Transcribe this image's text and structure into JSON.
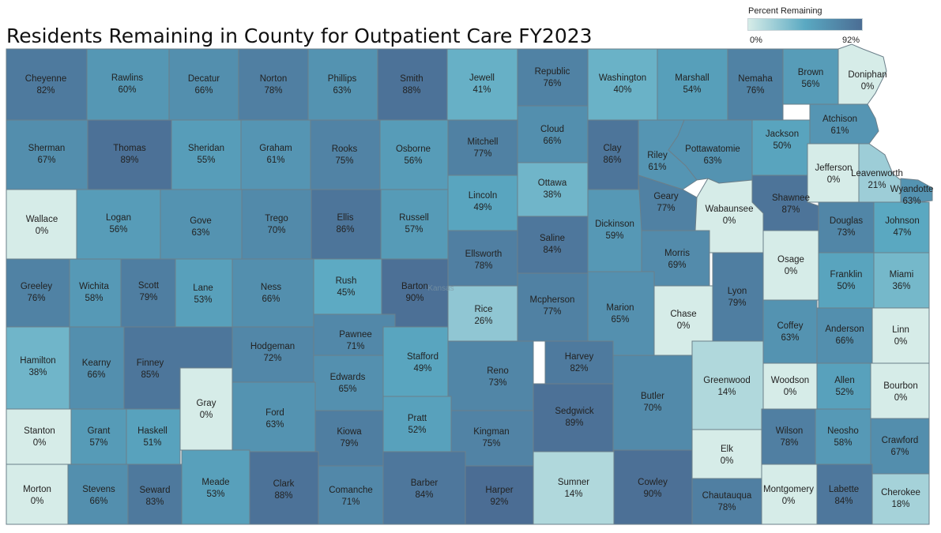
{
  "title": "Residents Remaining in County for Outpatient Care FY2023",
  "legend": {
    "title": "Percent Remaining",
    "min_label": "0%",
    "max_label": "92%",
    "min_value": 0,
    "max_value": 92,
    "color_low": "#d6ece8",
    "color_mid": "#5aa9c2",
    "color_high": "#4b6d94"
  },
  "watermark": "Kansas",
  "counties": [
    {
      "name": "Cheyenne",
      "value": 82,
      "label": "82%"
    },
    {
      "name": "Rawlins",
      "value": 60,
      "label": "60%"
    },
    {
      "name": "Decatur",
      "value": 66,
      "label": "66%"
    },
    {
      "name": "Norton",
      "value": 78,
      "label": "78%"
    },
    {
      "name": "Phillips",
      "value": 63,
      "label": "63%"
    },
    {
      "name": "Smith",
      "value": 88,
      "label": "88%"
    },
    {
      "name": "Jewell",
      "value": 41,
      "label": "41%"
    },
    {
      "name": "Republic",
      "value": 76,
      "label": "76%"
    },
    {
      "name": "Washington",
      "value": 40,
      "label": "40%"
    },
    {
      "name": "Marshall",
      "value": 54,
      "label": "54%"
    },
    {
      "name": "Nemaha",
      "value": 76,
      "label": "76%"
    },
    {
      "name": "Brown",
      "value": 56,
      "label": "56%"
    },
    {
      "name": "Doniphan",
      "value": 0,
      "label": "0%"
    },
    {
      "name": "Sherman",
      "value": 67,
      "label": "67%"
    },
    {
      "name": "Thomas",
      "value": 89,
      "label": "89%"
    },
    {
      "name": "Sheridan",
      "value": 55,
      "label": "55%"
    },
    {
      "name": "Graham",
      "value": 61,
      "label": "61%"
    },
    {
      "name": "Rooks",
      "value": 75,
      "label": "75%"
    },
    {
      "name": "Osborne",
      "value": 56,
      "label": "56%"
    },
    {
      "name": "Mitchell",
      "value": 77,
      "label": "77%"
    },
    {
      "name": "Cloud",
      "value": 66,
      "label": "66%"
    },
    {
      "name": "Clay",
      "value": 86,
      "label": "86%"
    },
    {
      "name": "Riley",
      "value": 61,
      "label": "61%"
    },
    {
      "name": "Pottawatomie",
      "value": 63,
      "label": "63%"
    },
    {
      "name": "Jackson",
      "value": 50,
      "label": "50%"
    },
    {
      "name": "Atchison",
      "value": 61,
      "label": "61%"
    },
    {
      "name": "Jefferson",
      "value": 0,
      "label": "0%"
    },
    {
      "name": "Leavenworth",
      "value": 21,
      "label": "21%"
    },
    {
      "name": "Wyandotte",
      "value": 63,
      "label": "63%"
    },
    {
      "name": "Wallace",
      "value": 0,
      "label": "0%"
    },
    {
      "name": "Logan",
      "value": 56,
      "label": "56%"
    },
    {
      "name": "Gove",
      "value": 63,
      "label": "63%"
    },
    {
      "name": "Trego",
      "value": 70,
      "label": "70%"
    },
    {
      "name": "Ellis",
      "value": 86,
      "label": "86%"
    },
    {
      "name": "Russell",
      "value": 57,
      "label": "57%"
    },
    {
      "name": "Lincoln",
      "value": 49,
      "label": "49%"
    },
    {
      "name": "Ottawa",
      "value": 38,
      "label": "38%"
    },
    {
      "name": "Dickinson",
      "value": 59,
      "label": "59%"
    },
    {
      "name": "Geary",
      "value": 77,
      "label": "77%"
    },
    {
      "name": "Wabaunsee",
      "value": 0,
      "label": "0%"
    },
    {
      "name": "Shawnee",
      "value": 87,
      "label": "87%"
    },
    {
      "name": "Douglas",
      "value": 73,
      "label": "73%"
    },
    {
      "name": "Johnson",
      "value": 47,
      "label": "47%"
    },
    {
      "name": "Ellsworth",
      "value": 78,
      "label": "78%"
    },
    {
      "name": "Saline",
      "value": 84,
      "label": "84%"
    },
    {
      "name": "Morris",
      "value": 69,
      "label": "69%"
    },
    {
      "name": "Osage",
      "value": 0,
      "label": "0%"
    },
    {
      "name": "Franklin",
      "value": 50,
      "label": "50%"
    },
    {
      "name": "Miami",
      "value": 36,
      "label": "36%"
    },
    {
      "name": "Greeley",
      "value": 76,
      "label": "76%"
    },
    {
      "name": "Wichita",
      "value": 58,
      "label": "58%"
    },
    {
      "name": "Scott",
      "value": 79,
      "label": "79%"
    },
    {
      "name": "Lane",
      "value": 53,
      "label": "53%"
    },
    {
      "name": "Ness",
      "value": 66,
      "label": "66%"
    },
    {
      "name": "Rush",
      "value": 45,
      "label": "45%"
    },
    {
      "name": "Barton",
      "value": 90,
      "label": "90%"
    },
    {
      "name": "Rice",
      "value": 26,
      "label": "26%"
    },
    {
      "name": "Mcpherson",
      "value": 77,
      "label": "77%"
    },
    {
      "name": "Marion",
      "value": 65,
      "label": "65%"
    },
    {
      "name": "Chase",
      "value": 0,
      "label": "0%"
    },
    {
      "name": "Lyon",
      "value": 79,
      "label": "79%"
    },
    {
      "name": "Coffey",
      "value": 63,
      "label": "63%"
    },
    {
      "name": "Anderson",
      "value": 66,
      "label": "66%"
    },
    {
      "name": "Linn",
      "value": 0,
      "label": "0%"
    },
    {
      "name": "Hamilton",
      "value": 38,
      "label": "38%"
    },
    {
      "name": "Kearny",
      "value": 66,
      "label": "66%"
    },
    {
      "name": "Finney",
      "value": 85,
      "label": "85%"
    },
    {
      "name": "Hodgeman",
      "value": 72,
      "label": "72%"
    },
    {
      "name": "Pawnee",
      "value": 71,
      "label": "71%"
    },
    {
      "name": "Edwards",
      "value": 65,
      "label": "65%"
    },
    {
      "name": "Stafford",
      "value": 49,
      "label": "49%"
    },
    {
      "name": "Reno",
      "value": 73,
      "label": "73%"
    },
    {
      "name": "Harvey",
      "value": 82,
      "label": "82%"
    },
    {
      "name": "Butler",
      "value": 70,
      "label": "70%"
    },
    {
      "name": "Greenwood",
      "value": 14,
      "label": "14%"
    },
    {
      "name": "Woodson",
      "value": 0,
      "label": "0%"
    },
    {
      "name": "Allen",
      "value": 52,
      "label": "52%"
    },
    {
      "name": "Bourbon",
      "value": 0,
      "label": "0%"
    },
    {
      "name": "Gray",
      "value": 0,
      "label": "0%"
    },
    {
      "name": "Ford",
      "value": 63,
      "label": "63%"
    },
    {
      "name": "Stanton",
      "value": 0,
      "label": "0%"
    },
    {
      "name": "Grant",
      "value": 57,
      "label": "57%"
    },
    {
      "name": "Haskell",
      "value": 51,
      "label": "51%"
    },
    {
      "name": "Kiowa",
      "value": 79,
      "label": "79%"
    },
    {
      "name": "Pratt",
      "value": 52,
      "label": "52%"
    },
    {
      "name": "Kingman",
      "value": 75,
      "label": "75%"
    },
    {
      "name": "Sedgwick",
      "value": 89,
      "label": "89%"
    },
    {
      "name": "Elk",
      "value": 0,
      "label": "0%"
    },
    {
      "name": "Wilson",
      "value": 78,
      "label": "78%"
    },
    {
      "name": "Neosho",
      "value": 58,
      "label": "58%"
    },
    {
      "name": "Crawford",
      "value": 67,
      "label": "67%"
    },
    {
      "name": "Morton",
      "value": 0,
      "label": "0%"
    },
    {
      "name": "Stevens",
      "value": 66,
      "label": "66%"
    },
    {
      "name": "Seward",
      "value": 83,
      "label": "83%"
    },
    {
      "name": "Meade",
      "value": 53,
      "label": "53%"
    },
    {
      "name": "Clark",
      "value": 88,
      "label": "88%"
    },
    {
      "name": "Comanche",
      "value": 71,
      "label": "71%"
    },
    {
      "name": "Barber",
      "value": 84,
      "label": "84%"
    },
    {
      "name": "Harper",
      "value": 92,
      "label": "92%"
    },
    {
      "name": "Sumner",
      "value": 14,
      "label": "14%"
    },
    {
      "name": "Cowley",
      "value": 90,
      "label": "90%"
    },
    {
      "name": "Chautauqua",
      "value": 78,
      "label": "78%"
    },
    {
      "name": "Montgomery",
      "value": 0,
      "label": "0%"
    },
    {
      "name": "Labette",
      "value": 84,
      "label": "84%"
    },
    {
      "name": "Cherokee",
      "value": 18,
      "label": "18%"
    }
  ]
}
